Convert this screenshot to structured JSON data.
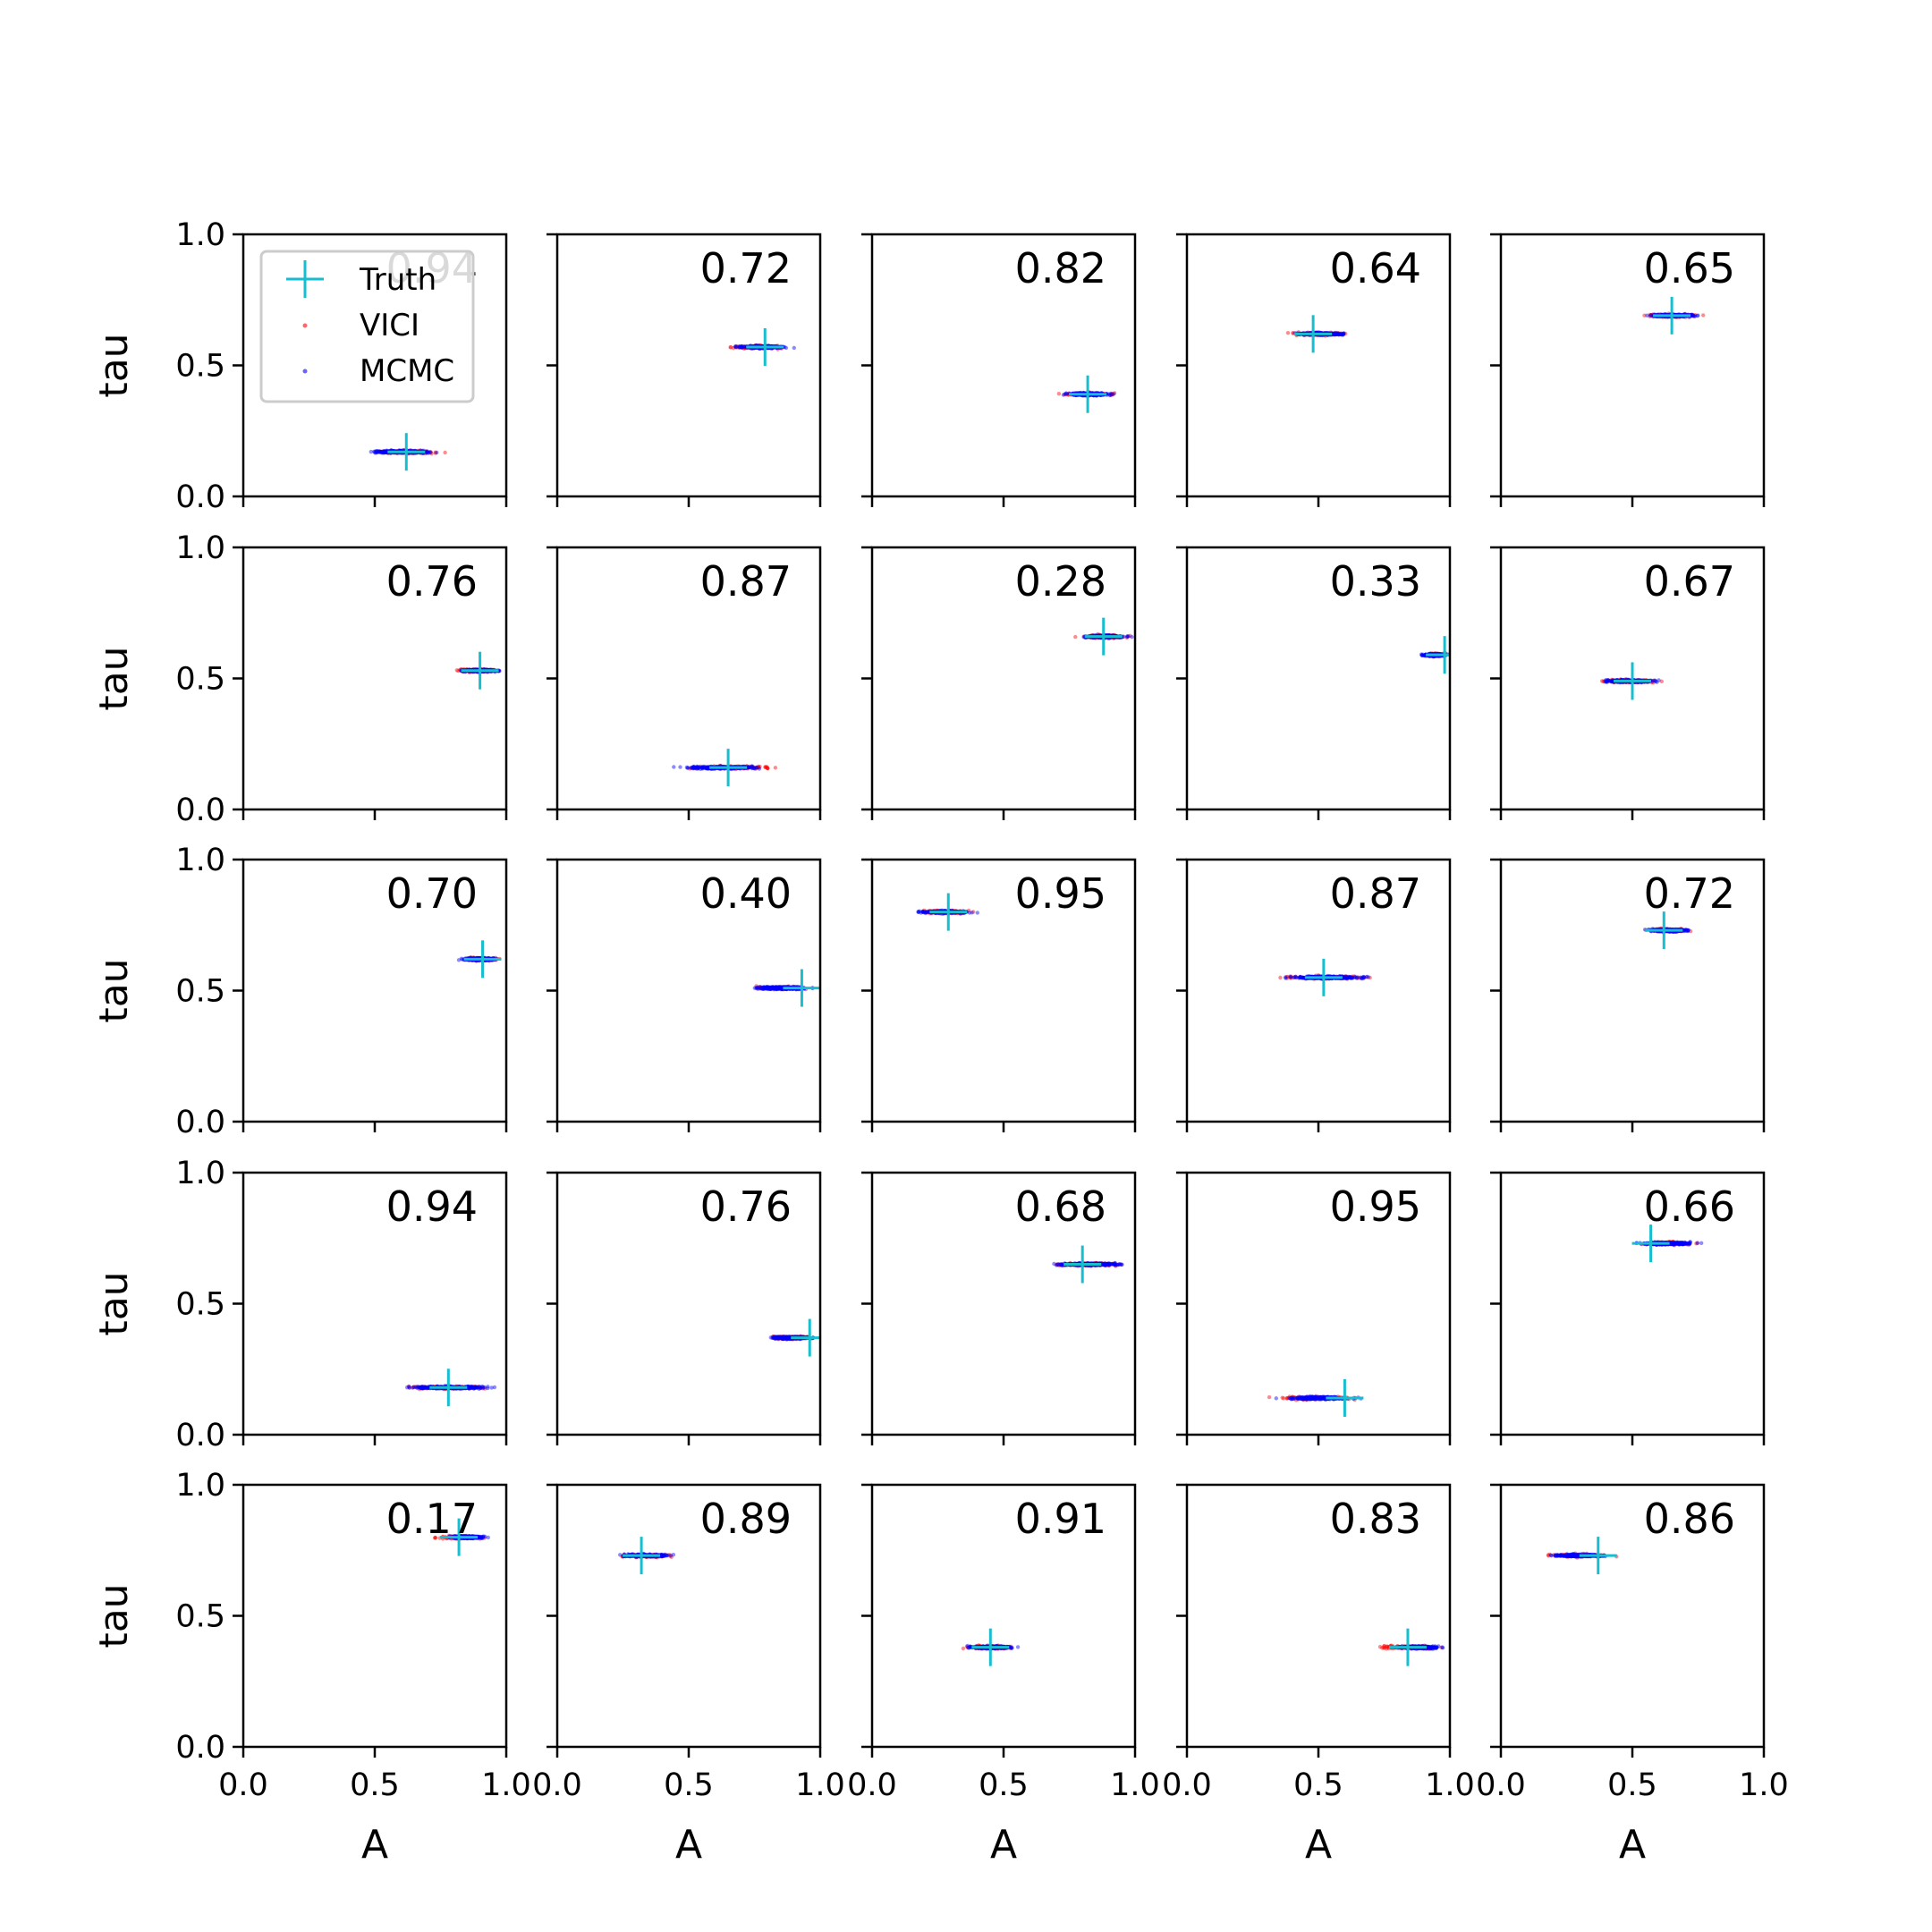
{
  "chart_data": {
    "type": "scatter",
    "layout": "grid",
    "rows": 5,
    "cols": 5,
    "xlabel": "A",
    "ylabel": "tau",
    "xlim": [
      0,
      1
    ],
    "ylim": [
      0,
      1
    ],
    "xticks": [
      "0.0",
      "0.5",
      "1.0"
    ],
    "yticks": [
      "0.0",
      "0.5",
      "1.0"
    ],
    "grid": false,
    "legend": {
      "placement": "upper-left of first panel",
      "entries": [
        {
          "label": "Truth",
          "marker": "plus",
          "color": "#17becf"
        },
        {
          "label": "VICI",
          "marker": "dot",
          "color": "#ff0000"
        },
        {
          "label": "MCMC",
          "marker": "dot",
          "color": "#0000ff"
        }
      ]
    },
    "colors": {
      "truth": "#17becf",
      "vici": "#ff0000",
      "mcmc": "#0000ff"
    },
    "panels": [
      {
        "value": "0.94",
        "truth": [
          0.62,
          0.17
        ],
        "vici": [
          0.45,
          0.8
        ],
        "mcmc": [
          0.42,
          0.78
        ]
      },
      {
        "value": "0.72",
        "truth": [
          0.79,
          0.57
        ],
        "vici": [
          0.63,
          0.92
        ],
        "mcmc": [
          0.65,
          0.91
        ]
      },
      {
        "value": "0.82",
        "truth": [
          0.82,
          0.39
        ],
        "vici": [
          0.68,
          0.96
        ],
        "mcmc": [
          0.7,
          0.95
        ]
      },
      {
        "value": "0.64",
        "truth": [
          0.48,
          0.62
        ],
        "vici": [
          0.36,
          0.66
        ],
        "mcmc": [
          0.38,
          0.64
        ]
      },
      {
        "value": "0.65",
        "truth": [
          0.65,
          0.69
        ],
        "vici": [
          0.51,
          0.8
        ],
        "mcmc": [
          0.53,
          0.78
        ]
      },
      {
        "value": "0.76",
        "truth": [
          0.9,
          0.53
        ],
        "vici": [
          0.78,
          1.0
        ],
        "mcmc": [
          0.8,
          1.0
        ]
      },
      {
        "value": "0.87",
        "truth": [
          0.65,
          0.16
        ],
        "vici": [
          0.45,
          0.9
        ],
        "mcmc": [
          0.43,
          0.83
        ]
      },
      {
        "value": "0.28",
        "truth": [
          0.88,
          0.66
        ],
        "vici": [
          0.76,
          1.0
        ],
        "mcmc": [
          0.76,
          1.0
        ]
      },
      {
        "value": "0.33",
        "truth": [
          0.98,
          0.59
        ],
        "vici": [
          0.9,
          1.0
        ],
        "mcmc": [
          0.88,
          1.0
        ]
      },
      {
        "value": "0.67",
        "truth": [
          0.5,
          0.49
        ],
        "vici": [
          0.34,
          0.64
        ],
        "mcmc": [
          0.35,
          0.63
        ]
      },
      {
        "value": "0.70",
        "truth": [
          0.91,
          0.62
        ],
        "vici": [
          0.82,
          1.0
        ],
        "mcmc": [
          0.8,
          1.0
        ]
      },
      {
        "value": "0.40",
        "truth": [
          0.93,
          0.51
        ],
        "vici": [
          0.72,
          1.0
        ],
        "mcmc": [
          0.71,
          1.0
        ]
      },
      {
        "value": "0.95",
        "truth": [
          0.29,
          0.8
        ],
        "vici": [
          0.14,
          0.42
        ],
        "mcmc": [
          0.15,
          0.41
        ]
      },
      {
        "value": "0.87",
        "truth": [
          0.52,
          0.55
        ],
        "vici": [
          0.3,
          0.78
        ],
        "mcmc": [
          0.33,
          0.74
        ]
      },
      {
        "value": "0.72",
        "truth": [
          0.62,
          0.73
        ],
        "vici": [
          0.52,
          0.76
        ],
        "mcmc": [
          0.53,
          0.75
        ]
      },
      {
        "value": "0.94",
        "truth": [
          0.78,
          0.18
        ],
        "vici": [
          0.56,
          1.0
        ],
        "mcmc": [
          0.58,
          1.0
        ]
      },
      {
        "value": "0.76",
        "truth": [
          0.96,
          0.37
        ],
        "vici": [
          0.77,
          1.0
        ],
        "mcmc": [
          0.78,
          1.0
        ]
      },
      {
        "value": "0.68",
        "truth": [
          0.8,
          0.65
        ],
        "vici": [
          0.65,
          1.0
        ],
        "mcmc": [
          0.66,
          1.0
        ]
      },
      {
        "value": "0.95",
        "truth": [
          0.6,
          0.14
        ],
        "vici": [
          0.3,
          0.7
        ],
        "mcmc": [
          0.32,
          0.68
        ]
      },
      {
        "value": "0.66",
        "truth": [
          0.57,
          0.73
        ],
        "vici": [
          0.48,
          0.78
        ],
        "mcmc": [
          0.49,
          0.77
        ]
      },
      {
        "value": "0.17",
        "truth": [
          0.82,
          0.8
        ],
        "vici": [
          0.7,
          0.95
        ],
        "mcmc": [
          0.75,
          0.95
        ]
      },
      {
        "value": "0.89",
        "truth": [
          0.32,
          0.73
        ],
        "vici": [
          0.2,
          0.47
        ],
        "mcmc": [
          0.2,
          0.47
        ]
      },
      {
        "value": "0.91",
        "truth": [
          0.45,
          0.38
        ],
        "vici": [
          0.32,
          0.59
        ],
        "mcmc": [
          0.33,
          0.58
        ]
      },
      {
        "value": "0.83",
        "truth": [
          0.84,
          0.38
        ],
        "vici": [
          0.68,
          1.0
        ],
        "mcmc": [
          0.77,
          1.0
        ]
      },
      {
        "value": "0.86",
        "truth": [
          0.37,
          0.73
        ],
        "vici": [
          0.15,
          0.45
        ],
        "mcmc": [
          0.16,
          0.44
        ]
      }
    ]
  }
}
